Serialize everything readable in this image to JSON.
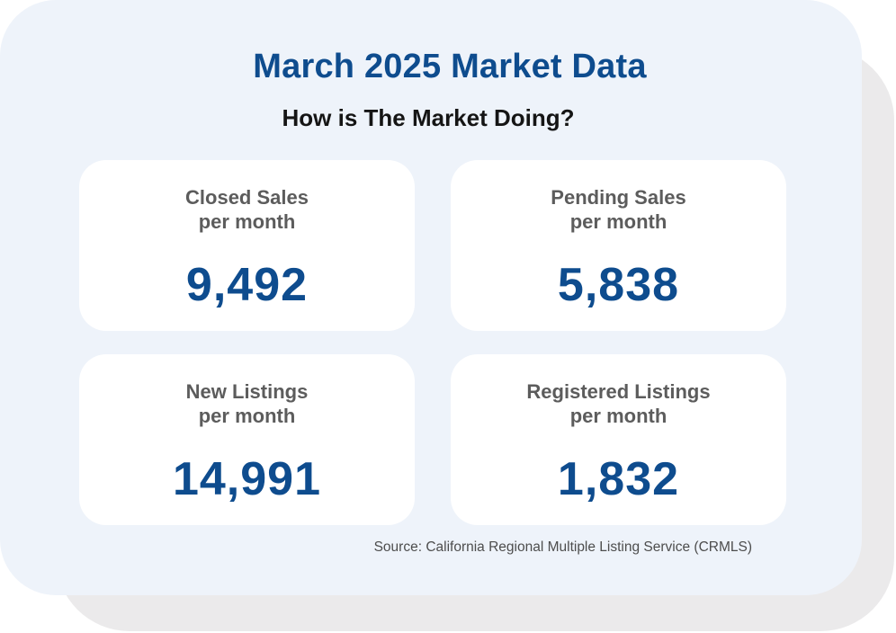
{
  "title": "March 2025 Market Data",
  "subtitle": "How is The Market Doing?",
  "stats": [
    {
      "label_line1": "Closed Sales",
      "label_line2": "per month",
      "value": "9,492"
    },
    {
      "label_line1": "Pending Sales",
      "label_line2": "per month",
      "value": "5,838"
    },
    {
      "label_line1": "New Listings",
      "label_line2": "per month",
      "value": "14,991"
    },
    {
      "label_line1": "Registered Listings",
      "label_line2": "per month",
      "value": "1,832"
    }
  ],
  "source": "Source: California Regional Multiple Listing Service (CRMLS)",
  "colors": {
    "accent": "#0e4c8e",
    "card_background": "#eef3fa",
    "shadow": "#ebeaeb",
    "label_text": "#5c5c5c"
  }
}
